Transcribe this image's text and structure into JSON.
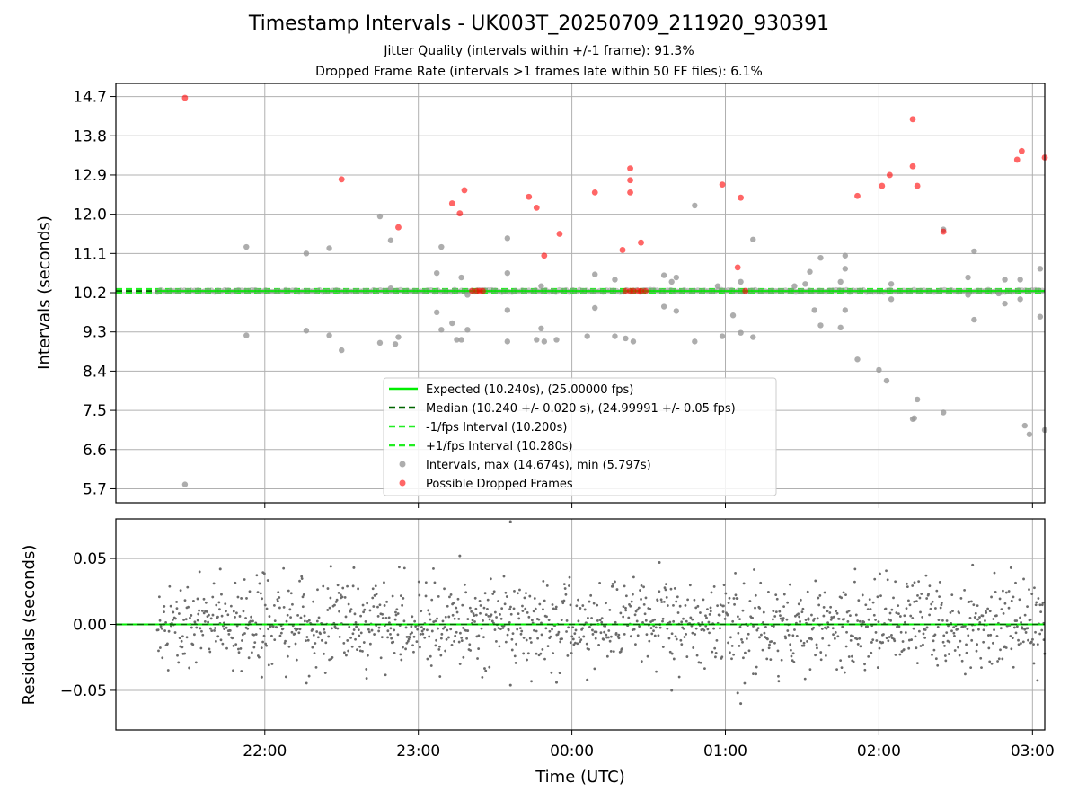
{
  "chart_data": [
    {
      "type": "scatter",
      "title": "Timestamp Intervals - UK003T_20250709_211920_930391",
      "subtitle_lines": [
        "Jitter Quality (intervals within +/-1 frame): 91.3%",
        "Dropped Frame Rate (intervals >1 frames late within 50 FF files): 6.1%"
      ],
      "xlabel": "",
      "ylabel": "Intervals (seconds)",
      "x_range_hours": [
        21.03,
        27.08
      ],
      "ylim": [
        5.38,
        15.0
      ],
      "y_ticks": [
        "5.7",
        "6.6",
        "7.5",
        "8.4",
        "9.3",
        "10.2",
        "11.1",
        "12.0",
        "12.9",
        "13.8",
        "14.7"
      ],
      "grid": true,
      "legend_placement": "lower center",
      "lines": {
        "expected": {
          "value": 10.24,
          "color": "#00ee00",
          "label": "Expected (10.240s), (25.00000 fps)"
        },
        "median": {
          "value": 10.24,
          "color": "#006400",
          "label": "Median (10.240 +/- 0.020 s), (24.99991 +/- 0.05 fps)"
        },
        "minus_fps": {
          "value": 10.2,
          "color": "#22ee22",
          "label": "-1/fps Interval (10.200s)"
        },
        "plus_fps": {
          "value": 10.28,
          "color": "#22ee22",
          "label": "+1/fps Interval (10.280s)"
        }
      },
      "series": [
        {
          "name": "Intervals, max (14.674s), min (5.797s)",
          "color": "#999999",
          "points": [
            [
              21.48,
              5.8
            ],
            [
              21.88,
              11.25
            ],
            [
              21.88,
              9.22
            ],
            [
              22.27,
              11.1
            ],
            [
              22.27,
              9.33
            ],
            [
              22.42,
              11.22
            ],
            [
              22.42,
              9.22
            ],
            [
              22.5,
              8.88
            ],
            [
              22.75,
              11.95
            ],
            [
              22.75,
              9.05
            ],
            [
              22.82,
              10.3
            ],
            [
              22.82,
              11.4
            ],
            [
              22.85,
              9.02
            ],
            [
              22.87,
              9.18
            ],
            [
              23.12,
              10.65
            ],
            [
              23.12,
              9.75
            ],
            [
              23.15,
              11.25
            ],
            [
              23.15,
              9.35
            ],
            [
              23.22,
              9.5
            ],
            [
              23.25,
              9.12
            ],
            [
              23.28,
              10.55
            ],
            [
              23.28,
              9.12
            ],
            [
              23.32,
              10.15
            ],
            [
              23.32,
              9.35
            ],
            [
              23.58,
              11.45
            ],
            [
              23.58,
              10.65
            ],
            [
              23.58,
              9.8
            ],
            [
              23.58,
              9.08
            ],
            [
              23.77,
              9.12
            ],
            [
              23.8,
              10.35
            ],
            [
              23.8,
              9.38
            ],
            [
              23.82,
              9.08
            ],
            [
              23.9,
              9.12
            ],
            [
              24.1,
              9.2
            ],
            [
              24.15,
              10.62
            ],
            [
              24.15,
              9.85
            ],
            [
              24.28,
              10.5
            ],
            [
              24.28,
              9.2
            ],
            [
              24.35,
              9.15
            ],
            [
              24.4,
              9.08
            ],
            [
              24.6,
              10.6
            ],
            [
              24.6,
              9.88
            ],
            [
              24.65,
              10.45
            ],
            [
              24.68,
              10.55
            ],
            [
              24.68,
              9.78
            ],
            [
              24.8,
              12.2
            ],
            [
              24.8,
              9.08
            ],
            [
              24.95,
              10.35
            ],
            [
              24.98,
              9.2
            ],
            [
              25.05,
              9.68
            ],
            [
              25.1,
              10.45
            ],
            [
              25.1,
              9.28
            ],
            [
              25.18,
              11.42
            ],
            [
              25.18,
              9.18
            ],
            [
              25.45,
              10.35
            ],
            [
              25.52,
              10.4
            ],
            [
              25.55,
              10.68
            ],
            [
              25.58,
              9.8
            ],
            [
              25.62,
              11.0
            ],
            [
              25.62,
              9.45
            ],
            [
              25.75,
              10.45
            ],
            [
              25.75,
              9.4
            ],
            [
              25.78,
              11.05
            ],
            [
              25.78,
              10.75
            ],
            [
              25.78,
              9.8
            ],
            [
              25.86,
              8.67
            ],
            [
              26.0,
              8.43
            ],
            [
              26.05,
              8.18
            ],
            [
              26.08,
              10.4
            ],
            [
              26.08,
              10.05
            ],
            [
              26.22,
              7.3
            ],
            [
              26.23,
              7.32
            ],
            [
              26.25,
              7.75
            ],
            [
              26.42,
              11.65
            ],
            [
              26.42,
              7.45
            ],
            [
              26.58,
              10.55
            ],
            [
              26.58,
              10.15
            ],
            [
              26.62,
              11.15
            ],
            [
              26.62,
              9.58
            ],
            [
              26.78,
              10.18
            ],
            [
              26.82,
              10.5
            ],
            [
              26.82,
              9.95
            ],
            [
              26.92,
              10.5
            ],
            [
              26.92,
              10.05
            ],
            [
              26.95,
              7.15
            ],
            [
              26.98,
              6.95
            ],
            [
              27.05,
              10.75
            ],
            [
              27.05,
              9.65
            ],
            [
              27.08,
              7.05
            ]
          ]
        },
        {
          "name": "Possible Dropped Frames",
          "color": "#ff0000",
          "points": [
            [
              21.48,
              14.67
            ],
            [
              22.5,
              12.8
            ],
            [
              22.87,
              11.7
            ],
            [
              23.22,
              12.25
            ],
            [
              23.27,
              12.02
            ],
            [
              23.3,
              12.55
            ],
            [
              23.72,
              12.4
            ],
            [
              23.77,
              12.15
            ],
            [
              23.82,
              11.05
            ],
            [
              23.92,
              11.55
            ],
            [
              24.15,
              12.5
            ],
            [
              24.33,
              11.18
            ],
            [
              24.38,
              13.05
            ],
            [
              24.38,
              12.78
            ],
            [
              24.38,
              12.5
            ],
            [
              24.45,
              11.35
            ],
            [
              24.98,
              12.68
            ],
            [
              25.08,
              10.78
            ],
            [
              25.1,
              12.38
            ],
            [
              25.86,
              12.42
            ],
            [
              26.02,
              12.65
            ],
            [
              26.07,
              12.9
            ],
            [
              26.22,
              14.18
            ],
            [
              26.22,
              13.1
            ],
            [
              26.25,
              12.65
            ],
            [
              26.42,
              11.6
            ],
            [
              26.9,
              13.25
            ],
            [
              26.93,
              13.45
            ],
            [
              27.08,
              13.3
            ],
            [
              23.35,
              10.24
            ],
            [
              23.38,
              10.24
            ],
            [
              23.4,
              10.24
            ],
            [
              23.42,
              10.24
            ],
            [
              24.35,
              10.24
            ],
            [
              24.38,
              10.24
            ],
            [
              24.4,
              10.24
            ],
            [
              24.43,
              10.24
            ],
            [
              24.45,
              10.24
            ],
            [
              24.48,
              10.24
            ],
            [
              25.13,
              10.24
            ]
          ]
        }
      ]
    },
    {
      "type": "scatter",
      "title": "",
      "xlabel": "Time (UTC)",
      "ylabel": "Residuals (seconds)",
      "x_range_hours": [
        21.03,
        27.08
      ],
      "ylim": [
        -0.08,
        0.08
      ],
      "x_ticks": [
        {
          "value": 22,
          "label": "22:00"
        },
        {
          "value": 23,
          "label": "23:00"
        },
        {
          "value": 24,
          "label": "00:00"
        },
        {
          "value": 25,
          "label": "01:00"
        },
        {
          "value": 26,
          "label": "02:00"
        },
        {
          "value": 27,
          "label": "03:00"
        }
      ],
      "y_ticks": [
        "0.05",
        "0.00",
        "−0.05"
      ],
      "y_tick_values": [
        0.05,
        0.0,
        -0.05
      ],
      "grid": true,
      "zero_line_color": "#00ee00",
      "series": [
        {
          "name": "",
          "color": "#6b6b6b",
          "points": [
            [
              23.6,
              0.078
            ],
            [
              23.27,
              0.052
            ],
            [
              24.57,
              0.047
            ],
            [
              25.1,
              -0.06
            ],
            [
              25.08,
              -0.052
            ],
            [
              24.65,
              -0.05
            ],
            [
              23.6,
              -0.046
            ],
            [
              23.9,
              -0.044
            ],
            [
              24.1,
              -0.042
            ],
            [
              21.98,
              -0.04
            ],
            [
              22.43,
              0.044
            ],
            [
              22.58,
              0.043
            ],
            [
              21.71,
              0.042
            ],
            [
              26.61,
              0.045
            ],
            [
              26.86,
              0.043
            ]
          ],
          "generated_points": {
            "count": 1400,
            "x_start": 21.3,
            "x_end": 27.08,
            "std": 0.017,
            "clip": 0.045
          }
        }
      ]
    }
  ]
}
